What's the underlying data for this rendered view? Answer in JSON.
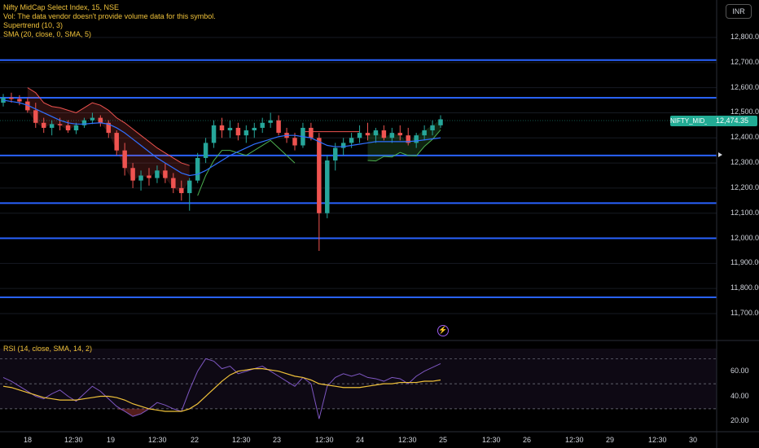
{
  "legend": {
    "title": "Nifty MidCap Select Index, 15, NSE",
    "vol": "Vol: The data vendor doesn't provide volume data for this symbol.",
    "supertrend": "Supertrend (10, 3)",
    "sma": "SMA (20, close, 0, SMA, 5)"
  },
  "rsi_legend": "RSI (14, close, SMA, 14, 2)",
  "currency": "INR",
  "price_badge": "12,474.35",
  "symbol_badge": "NIFTY_MID_SELECT",
  "price_axis": [
    "12,800.00",
    "12,700.00",
    "12,600.00",
    "12,500.00",
    "12,400.00",
    "12,300.00",
    "12,200.00",
    "12,100.00",
    "12,000.00",
    "11,900.00",
    "11,800.00",
    "11,700.00"
  ],
  "rsi_axis": [
    "60.00",
    "40.00",
    "20.00"
  ],
  "time_axis": [
    "18",
    "12:30",
    "19",
    "12:30",
    "22",
    "12:30",
    "23",
    "12:30",
    "24",
    "12:30",
    "25",
    "12:30",
    "26",
    "12:30",
    "29",
    "12:30",
    "30"
  ],
  "colors": {
    "up": "#26a69a",
    "down": "#ef5350",
    "hline": "#2962ff",
    "sma": "#2f6fff",
    "rsi_line": "#7e57c2",
    "rsi_sma": "#f0c23a",
    "supertrend_up": "#4caf50",
    "supertrend_down": "#ef5350"
  },
  "chart_data": {
    "type": "candlestick",
    "price_range": [
      11650,
      12850
    ],
    "horizontal_lines": [
      12710,
      12560,
      12330,
      12140,
      12000,
      11765
    ],
    "last_price": 12474.35,
    "candles": [
      [
        12540,
        12575,
        12525,
        12560
      ],
      [
        12560,
        12580,
        12540,
        12555
      ],
      [
        12555,
        12570,
        12530,
        12545
      ],
      [
        12545,
        12560,
        12500,
        12510
      ],
      [
        12510,
        12540,
        12440,
        12460
      ],
      [
        12460,
        12480,
        12420,
        12440
      ],
      [
        12440,
        12470,
        12410,
        12455
      ],
      [
        12455,
        12480,
        12430,
        12450
      ],
      [
        12450,
        12470,
        12420,
        12430
      ],
      [
        12430,
        12460,
        12415,
        12450
      ],
      [
        12450,
        12480,
        12440,
        12470
      ],
      [
        12470,
        12500,
        12455,
        12480
      ],
      [
        12480,
        12490,
        12445,
        12460
      ],
      [
        12460,
        12470,
        12400,
        12420
      ],
      [
        12420,
        12430,
        12330,
        12350
      ],
      [
        12350,
        12380,
        12250,
        12280
      ],
      [
        12280,
        12300,
        12200,
        12230
      ],
      [
        12230,
        12270,
        12190,
        12250
      ],
      [
        12250,
        12280,
        12210,
        12240
      ],
      [
        12240,
        12290,
        12220,
        12270
      ],
      [
        12270,
        12300,
        12220,
        12240
      ],
      [
        12240,
        12260,
        12180,
        12200
      ],
      [
        12200,
        12230,
        12150,
        12180
      ],
      [
        12180,
        12240,
        12110,
        12230
      ],
      [
        12230,
        12340,
        12220,
        12320
      ],
      [
        12320,
        12400,
        12300,
        12380
      ],
      [
        12380,
        12470,
        12360,
        12450
      ],
      [
        12450,
        12480,
        12400,
        12430
      ],
      [
        12430,
        12470,
        12400,
        12440
      ],
      [
        12440,
        12460,
        12390,
        12410
      ],
      [
        12410,
        12450,
        12380,
        12430
      ],
      [
        12430,
        12460,
        12400,
        12440
      ],
      [
        12440,
        12480,
        12420,
        12460
      ],
      [
        12460,
        12500,
        12440,
        12470
      ],
      [
        12470,
        12490,
        12410,
        12420
      ],
      [
        12420,
        12440,
        12380,
        12400
      ],
      [
        12400,
        12420,
        12350,
        12370
      ],
      [
        12370,
        12460,
        12360,
        12440
      ],
      [
        12440,
        12460,
        12390,
        12400
      ],
      [
        12400,
        12420,
        11950,
        12100
      ],
      [
        12100,
        12330,
        12080,
        12310
      ],
      [
        12310,
        12380,
        12270,
        12360
      ],
      [
        12360,
        12400,
        12330,
        12380
      ],
      [
        12380,
        12420,
        12360,
        12400
      ],
      [
        12400,
        12450,
        12380,
        12420
      ],
      [
        12420,
        12460,
        12390,
        12410
      ],
      [
        12410,
        12440,
        12380,
        12430
      ],
      [
        12430,
        12450,
        12390,
        12400
      ],
      [
        12400,
        12440,
        12380,
        12420
      ],
      [
        12420,
        12450,
        12390,
        12410
      ],
      [
        12410,
        12440,
        12370,
        12380
      ],
      [
        12380,
        12420,
        12360,
        12410
      ],
      [
        12410,
        12450,
        12390,
        12430
      ],
      [
        12430,
        12470,
        12410,
        12450
      ],
      [
        12450,
        12490,
        12440,
        12474
      ]
    ],
    "sma": [
      12550,
      12545,
      12540,
      12530,
      12515,
      12500,
      12485,
      12470,
      12460,
      12455,
      12455,
      12458,
      12460,
      12455,
      12440,
      12420,
      12395,
      12370,
      12345,
      12320,
      12300,
      12280,
      12260,
      12250,
      12255,
      12270,
      12290,
      12310,
      12330,
      12345,
      12360,
      12375,
      12385,
      12395,
      12405,
      12410,
      12410,
      12405,
      12400,
      12385,
      12370,
      12365,
      12365,
      12370,
      12375,
      12380,
      12385,
      12385,
      12385,
      12385,
      12385,
      12388,
      12392,
      12396,
      12400
    ],
    "rsi": [
      55,
      52,
      48,
      44,
      40,
      38,
      42,
      45,
      40,
      36,
      42,
      48,
      44,
      38,
      32,
      28,
      24,
      26,
      30,
      35,
      33,
      30,
      28,
      45,
      60,
      70,
      68,
      62,
      64,
      58,
      60,
      62,
      64,
      60,
      56,
      52,
      48,
      55,
      50,
      22,
      48,
      55,
      58,
      56,
      58,
      55,
      54,
      52,
      55,
      54,
      50,
      56,
      60,
      63,
      66
    ],
    "rsi_sma": [
      48,
      47,
      45,
      43,
      41,
      39,
      38,
      37,
      37,
      37,
      38,
      39,
      40,
      40,
      39,
      37,
      34,
      32,
      30,
      29,
      28,
      28,
      28,
      30,
      34,
      40,
      46,
      52,
      57,
      60,
      61,
      62,
      62,
      61,
      60,
      58,
      56,
      55,
      53,
      50,
      49,
      48,
      47,
      47,
      47,
      48,
      49,
      50,
      50,
      51,
      51,
      51,
      52,
      52,
      53
    ],
    "rsi_levels": [
      70,
      50,
      30
    ],
    "rsi_range": [
      15,
      78
    ]
  }
}
